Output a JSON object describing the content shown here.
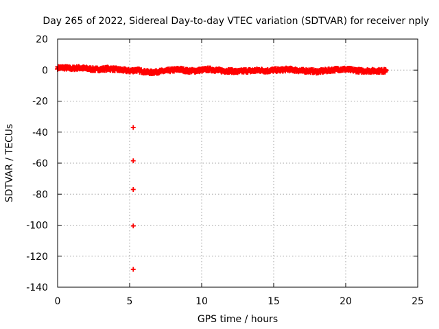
{
  "chart_data": {
    "type": "scatter",
    "title": "Day 265 of 2022, Sidereal Day-to-day VTEC variation (SDTVAR) for receiver nply",
    "xlabel": "GPS time / hours",
    "ylabel": "SDTVAR / TECUs",
    "xlim": [
      0,
      25
    ],
    "ylim": [
      -140,
      20
    ],
    "xticks": [
      0,
      5,
      10,
      15,
      20,
      25
    ],
    "yticks": [
      20,
      0,
      -20,
      -40,
      -60,
      -80,
      -100,
      -120,
      -140
    ],
    "grid": true,
    "marker": "+",
    "series": [
      {
        "color": "#ff0000",
        "trend": {
          "x": [
            0.0,
            0.5,
            1.0,
            1.5,
            2.0,
            2.5,
            3.0,
            3.5,
            4.0,
            4.5,
            5.0,
            5.5,
            6.0,
            6.5,
            7.0,
            7.5,
            8.0,
            8.5,
            9.0,
            9.5,
            10.0,
            10.5,
            11.0,
            11.5,
            12.0,
            12.5,
            13.0,
            13.5,
            14.0,
            14.5,
            15.0,
            15.5,
            16.0,
            16.5,
            17.0,
            17.5,
            18.0,
            18.5,
            19.0,
            19.5,
            20.0,
            20.5,
            21.0,
            21.5,
            22.0,
            22.5,
            22.8
          ],
          "y": [
            1.5,
            1.5,
            1.0,
            1.5,
            1.0,
            0.5,
            0.5,
            1.0,
            0.5,
            0.0,
            -0.5,
            0.0,
            -1.0,
            -1.5,
            -1.0,
            -0.5,
            0.0,
            0.5,
            -0.5,
            -0.5,
            0.0,
            0.5,
            0.0,
            -0.5,
            -0.5,
            -1.0,
            -0.5,
            -0.5,
            0.0,
            -0.5,
            0.0,
            0.0,
            0.5,
            0.0,
            -0.5,
            -0.5,
            -1.0,
            -0.5,
            0.0,
            0.5,
            0.5,
            0.0,
            -0.5,
            -0.5,
            -0.5,
            -0.5,
            -0.5
          ]
        },
        "outliers": [
          {
            "x": 5.25,
            "y": -37
          },
          {
            "x": 5.25,
            "y": -58.5
          },
          {
            "x": 5.25,
            "y": -77
          },
          {
            "x": 5.25,
            "y": -100.5
          },
          {
            "x": 5.25,
            "y": -128.5
          }
        ]
      }
    ]
  }
}
